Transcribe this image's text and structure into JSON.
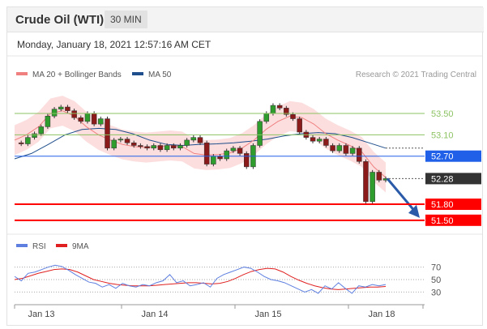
{
  "header": {
    "title": "Crude Oil (WTI)",
    "timeframe": "30 MIN"
  },
  "datetime": "Monday, January 18, 2021 12:57:16 AM CET",
  "colors": {
    "ma20": "#f08080",
    "ma50": "#1f4e8c",
    "bands": "#fbd0d0",
    "resistance": "#8dc363",
    "pivot": "#2060e8",
    "support": "#ff0000",
    "price_box": "#333333",
    "rsi": "#5e7fe0",
    "rsi_ma": "#e02020",
    "arrow": "#2a5aa8"
  },
  "chart_data": [
    {
      "type": "line",
      "title": "Crude Oil (WTI)",
      "legend": [
        {
          "label": "MA 20 + Bollinger Bands",
          "color": "#f08080"
        },
        {
          "label": "MA 50",
          "color": "#1f4e8c"
        }
      ],
      "legend_position": "top-left",
      "credit": "Research © 2021 Trading Central",
      "ylim": [
        51.3,
        54.03
      ],
      "current_price": "52.28",
      "levels": [
        {
          "label": "53.50",
          "value": 53.5,
          "kind": "resistance"
        },
        {
          "label": "53.10",
          "value": 53.1,
          "kind": "resistance"
        },
        {
          "label": "52.70",
          "value": 52.7,
          "kind": "pivot"
        },
        {
          "label": "51.80",
          "value": 51.8,
          "kind": "support"
        },
        {
          "label": "51.50",
          "value": 51.5,
          "kind": "support"
        }
      ],
      "x_ticks": [
        "Jan 13",
        "Jan 14",
        "Jan 15",
        "Jan 18"
      ],
      "series": [
        {
          "name": "Price",
          "values": [
            52.95,
            52.93,
            53.05,
            53.12,
            53.25,
            53.45,
            53.58,
            53.62,
            53.55,
            53.42,
            53.35,
            53.5,
            53.3,
            53.4,
            52.85,
            53.0,
            53.02,
            52.95,
            52.9,
            52.88,
            52.85,
            52.9,
            52.82,
            52.9,
            52.85,
            52.9,
            53.0,
            53.05,
            52.95,
            52.55,
            52.7,
            52.65,
            52.8,
            52.85,
            52.75,
            52.5,
            52.9,
            53.35,
            53.5,
            53.65,
            53.6,
            53.48,
            53.4,
            53.15,
            53.05,
            52.98,
            53.02,
            52.9,
            52.8,
            52.9,
            52.75,
            52.85,
            52.6,
            51.85,
            52.4,
            52.25,
            52.28
          ]
        },
        {
          "name": "MA 20",
          "values": [
            53.0,
            53.1,
            53.25,
            53.5,
            53.55,
            53.45,
            53.25,
            53.1,
            53.0,
            52.92,
            52.88,
            52.86,
            52.88,
            52.9,
            52.88,
            52.75,
            52.72,
            52.73,
            52.76,
            52.85,
            53.0,
            53.2,
            53.35,
            53.45,
            53.42,
            53.3,
            53.12,
            53.0,
            52.9,
            52.78,
            52.5,
            52.3
          ]
        },
        {
          "name": "MA 50",
          "values": [
            52.65,
            52.75,
            52.92,
            53.1,
            53.2,
            53.22,
            53.2,
            53.12,
            53.0,
            52.92,
            52.9,
            52.92,
            52.93,
            52.95,
            52.98,
            53.02,
            53.08,
            53.12,
            53.14,
            53.12,
            53.05,
            52.95,
            52.85
          ]
        }
      ]
    },
    {
      "type": "line",
      "legend": [
        {
          "label": "RSI",
          "color": "#5e7fe0"
        },
        {
          "label": "9MA",
          "color": "#e02020"
        }
      ],
      "legend_position": "top-left",
      "ylim": [
        15,
        85
      ],
      "y_ticks": [
        "70",
        "50",
        "30"
      ],
      "y_tick_values": [
        70,
        50,
        30
      ],
      "series": [
        {
          "name": "RSI",
          "values": [
            55,
            48,
            60,
            62,
            66,
            70,
            73,
            71,
            65,
            58,
            52,
            46,
            44,
            38,
            42,
            36,
            44,
            40,
            38,
            42,
            40,
            45,
            48,
            58,
            45,
            48,
            40,
            42,
            45,
            38,
            52,
            58,
            62,
            66,
            70,
            68,
            62,
            55,
            50,
            48,
            45,
            40,
            35,
            30,
            34,
            28,
            40,
            35,
            45,
            36,
            28,
            40,
            38,
            42,
            40,
            42
          ]
        },
        {
          "name": "9MA",
          "values": [
            50,
            52,
            56,
            60,
            63,
            66,
            67,
            66,
            62,
            56,
            50,
            47,
            44,
            42,
            41,
            40,
            40,
            40,
            41,
            42,
            43,
            44,
            45,
            45,
            44,
            43,
            44,
            47,
            52,
            58,
            63,
            66,
            68,
            67,
            62,
            55,
            49,
            44,
            40,
            37,
            35,
            34,
            35,
            36,
            37,
            38,
            38,
            39
          ]
        }
      ]
    }
  ]
}
